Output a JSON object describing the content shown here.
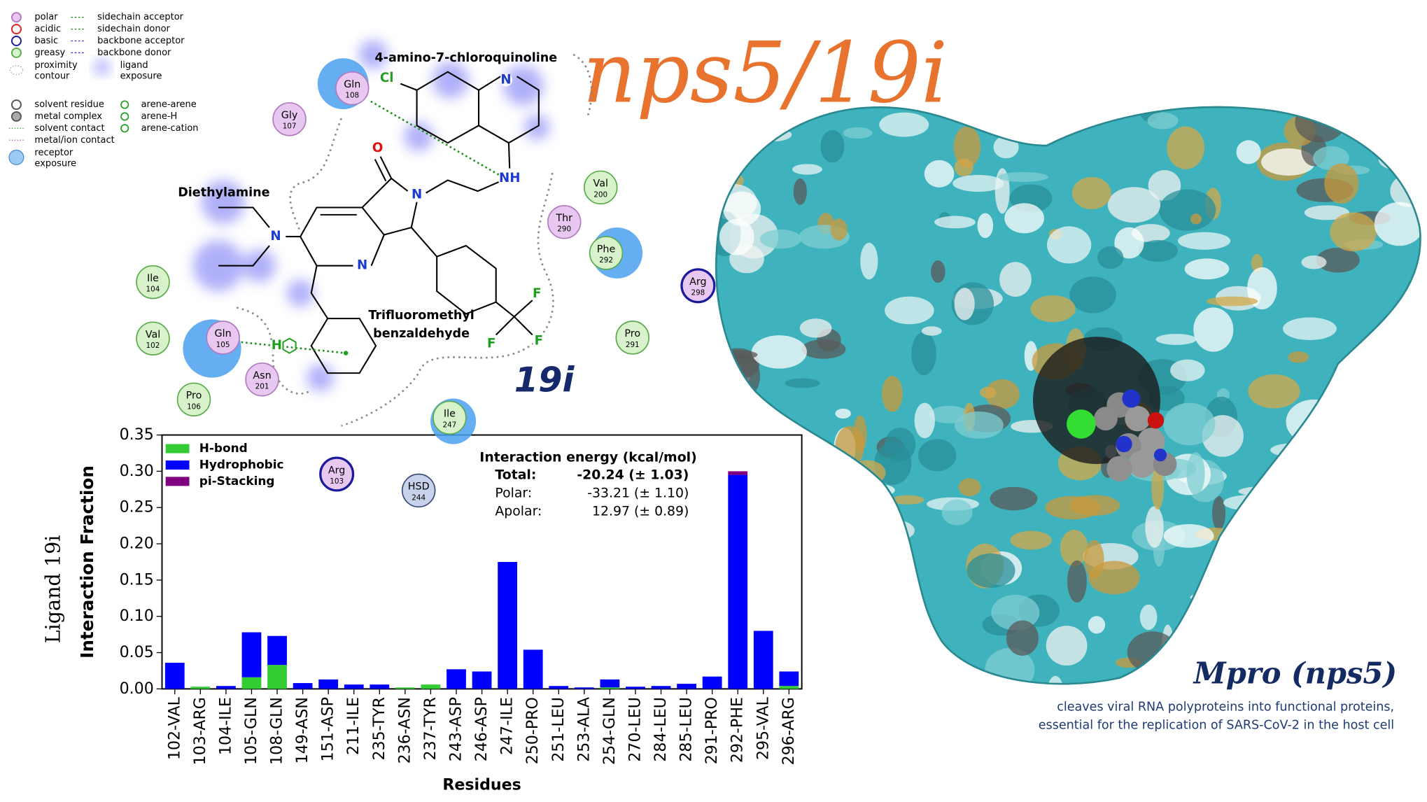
{
  "title": "nps5/19i",
  "protein": {
    "title": "Mpro (nps5)",
    "description": [
      "cleaves viral RNA polyproteins into functional proteins,",
      "essential for the replication of SARS-CoV-2 in the host cell"
    ]
  },
  "ligand_diagram": {
    "legend": [
      "polar",
      "acidic",
      "basic",
      "greasy",
      "proximity",
      "contour",
      "ligand",
      "exposure",
      "sidechain acceptor",
      "sidechain donor",
      "backbone acceptor",
      "backbone donor",
      "solvent residue",
      "metal complex",
      "solvent contact",
      "metal/ion contact",
      "receptor",
      "exposure",
      "arene-arene",
      "arene-H",
      "arene-cation"
    ],
    "groups": [
      "4-amino-7-chloroquinoline",
      "Diethylamine",
      "Trifluoromethyl",
      "benzaldehyde"
    ],
    "compound": "19i",
    "atoms": [
      "Cl",
      "N",
      "NH",
      "O",
      "N",
      "N",
      "N",
      "H",
      "F",
      "F",
      "F"
    ],
    "residues": [
      {
        "name": "Gln",
        "number": "108",
        "kind": "polar",
        "exposure": true
      },
      {
        "name": "Gly",
        "number": "107",
        "kind": "polar",
        "exposure": false
      },
      {
        "name": "Val",
        "number": "200",
        "kind": "greasy",
        "exposure": false
      },
      {
        "name": "Thr",
        "number": "290",
        "kind": "polar",
        "exposure": false
      },
      {
        "name": "Phe",
        "number": "292",
        "kind": "greasy",
        "exposure": true
      },
      {
        "name": "Arg",
        "number": "298",
        "kind": "basic",
        "exposure": false
      },
      {
        "name": "Ile",
        "number": "104",
        "kind": "greasy",
        "exposure": false
      },
      {
        "name": "Val",
        "number": "102",
        "kind": "greasy",
        "exposure": false
      },
      {
        "name": "Gln",
        "number": "105",
        "kind": "polar",
        "exposure": true
      },
      {
        "name": "Asn",
        "number": "201",
        "kind": "polar",
        "exposure": false
      },
      {
        "name": "Pro",
        "number": "106",
        "kind": "greasy",
        "exposure": false
      },
      {
        "name": "Pro",
        "number": "291",
        "kind": "greasy",
        "exposure": false
      },
      {
        "name": "Ile",
        "number": "247",
        "kind": "greasy",
        "exposure": true
      },
      {
        "name": "Arg",
        "number": "103",
        "kind": "basic",
        "exposure": false
      },
      {
        "name": "HSD",
        "number": "244",
        "kind": "other",
        "exposure": false
      }
    ]
  },
  "chart_data": {
    "type": "bar",
    "stacked": true,
    "xlabel": "Residues",
    "ylabel": "Interaction Fraction",
    "side_label": "Ligand 19i",
    "legend": "upper left",
    "categories": [
      "102-VAL",
      "103-ARG",
      "104-ILE",
      "105-GLN",
      "108-GLN",
      "149-ASN",
      "151-ASP",
      "211-ILE",
      "235-TYR",
      "236-ASN",
      "237-TYR",
      "243-ASP",
      "246-ASP",
      "247-ILE",
      "250-PRO",
      "251-LEU",
      "253-ALA",
      "254-GLN",
      "270-LEU",
      "284-LEU",
      "285-LEU",
      "291-PRO",
      "292-PHE",
      "295-VAL",
      "296-ARG"
    ],
    "series": [
      {
        "name": "H-bond",
        "color": "#33cc33",
        "values": [
          0,
          0.003,
          0,
          0.016,
          0.033,
          0,
          0,
          0,
          0,
          0.002,
          0.006,
          0,
          0,
          0,
          0,
          0,
          0,
          0.002,
          0,
          0,
          0,
          0,
          0,
          0,
          0.004
        ]
      },
      {
        "name": "Hydrophobic",
        "color": "#0000ff",
        "values": [
          0.036,
          0,
          0.004,
          0.062,
          0.04,
          0.008,
          0.013,
          0.006,
          0.006,
          0,
          0,
          0.027,
          0.024,
          0.175,
          0.054,
          0.004,
          0.002,
          0.011,
          0.003,
          0.004,
          0.007,
          0.017,
          0.295,
          0.08,
          0.02
        ]
      },
      {
        "name": "pi-Stacking",
        "color": "#800080",
        "values": [
          0,
          0,
          0,
          0,
          0,
          0,
          0,
          0,
          0,
          0,
          0,
          0,
          0,
          0,
          0,
          0,
          0,
          0,
          0,
          0,
          0,
          0,
          0.005,
          0,
          0
        ]
      }
    ],
    "ylim": [
      0,
      0.35
    ],
    "yticks": [
      {
        "value": 0,
        "label": "0.00"
      },
      {
        "value": 0.05,
        "label": "0.05"
      },
      {
        "value": 0.1,
        "label": "0.10"
      },
      {
        "value": 0.15,
        "label": "0.15"
      },
      {
        "value": 0.2,
        "label": "0.20"
      },
      {
        "value": 0.25,
        "label": "0.25"
      },
      {
        "value": 0.3,
        "label": "0.30"
      },
      {
        "value": 0.35,
        "label": "0.35"
      }
    ],
    "annotation": {
      "title": "Interaction energy (kcal/mol)",
      "rows": [
        [
          "Total:",
          "-20.24 (± 1.03)"
        ],
        [
          "Polar:",
          "-33.21 (± 1.10)"
        ],
        [
          "Apolar:",
          "12.97 (± 0.89)"
        ]
      ]
    }
  }
}
